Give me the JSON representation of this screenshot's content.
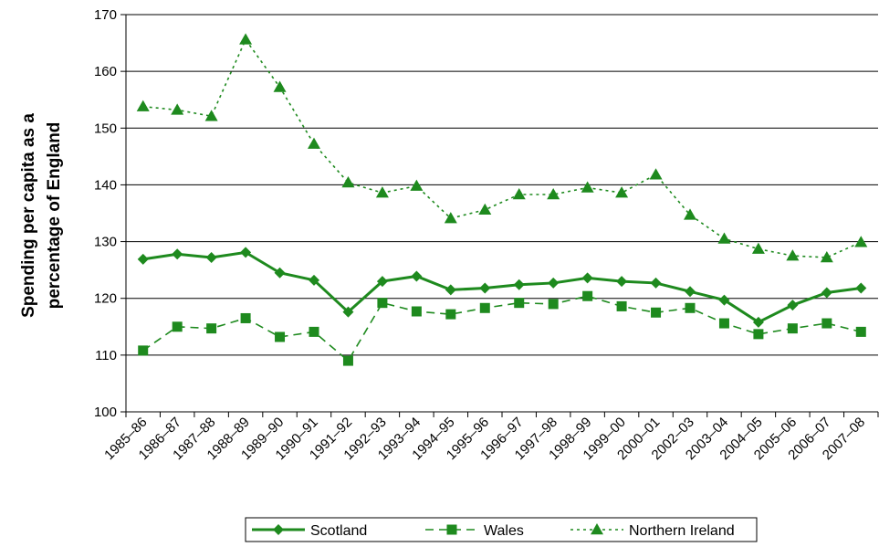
{
  "chart_data": {
    "type": "line",
    "title": "",
    "xlabel": "",
    "ylabel_lines": [
      "Spending per capita as a",
      "percentage of England"
    ],
    "ylim": [
      100,
      170
    ],
    "yticks": [
      100,
      110,
      120,
      130,
      140,
      150,
      160,
      170
    ],
    "grid": "horizontal",
    "legend_position": "bottom",
    "categories": [
      "1985–86",
      "1986–87",
      "1987–88",
      "1988–89",
      "1989–90",
      "1990–91",
      "1991–92",
      "1992–93",
      "1993–94",
      "1994–95",
      "1995–96",
      "1996–97",
      "1997–98",
      "1998–99",
      "1999–00",
      "2000–01",
      "2002–03",
      "2003–04",
      "2004–05",
      "2005–06",
      "2006–07",
      "2007–08"
    ],
    "series": [
      {
        "name": "Scotland",
        "color": "#1e8a1e",
        "line_style": "solid",
        "marker": "diamond",
        "values": [
          126.9,
          127.8,
          127.2,
          128.1,
          124.5,
          123.2,
          117.6,
          123.0,
          123.9,
          121.5,
          121.8,
          122.4,
          122.7,
          123.6,
          123.0,
          122.7,
          121.2,
          119.7,
          115.8,
          118.8,
          121.0,
          121.8
        ]
      },
      {
        "name": "Wales",
        "color": "#1e8a1e",
        "line_style": "dashed",
        "marker": "square",
        "values": [
          110.8,
          115.0,
          114.7,
          116.5,
          113.2,
          114.1,
          109.0,
          119.2,
          117.7,
          117.2,
          118.3,
          119.2,
          119.0,
          120.4,
          118.6,
          117.5,
          118.3,
          115.6,
          113.7,
          114.7,
          115.6,
          114.1
        ]
      },
      {
        "name": "Northern Ireland",
        "color": "#1e8a1e",
        "line_style": "dotted",
        "marker": "triangle",
        "values": [
          153.8,
          153.2,
          152.1,
          165.6,
          157.2,
          147.2,
          140.4,
          138.6,
          139.8,
          134.1,
          135.6,
          138.3,
          138.3,
          139.5,
          138.6,
          141.8,
          134.7,
          130.5,
          128.7,
          127.5,
          127.2,
          129.9
        ]
      }
    ]
  }
}
